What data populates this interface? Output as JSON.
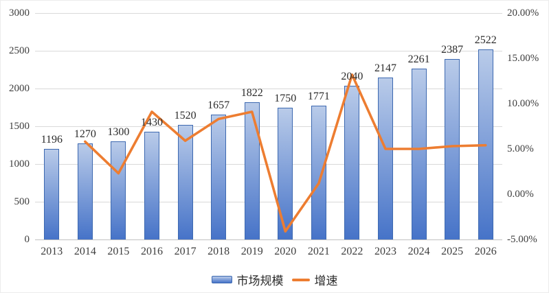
{
  "chart_data": {
    "type": "combo_bar_line",
    "categories": [
      "2013",
      "2014",
      "2015",
      "2016",
      "2017",
      "2018",
      "2019",
      "2020",
      "2021",
      "2022",
      "2023",
      "2024",
      "2025",
      "2026"
    ],
    "series": [
      {
        "name": "市场规模",
        "type": "bar",
        "axis": "left",
        "values": [
          1196,
          1270,
          1300,
          1430,
          1520,
          1657,
          1822,
          1750,
          1771,
          2040,
          2147,
          2261,
          2387,
          2522
        ],
        "value_labels_shown": true
      },
      {
        "name": "增速",
        "type": "line",
        "axis": "right",
        "unit": "%",
        "values": [
          null,
          5.8,
          2.3,
          9.1,
          5.9,
          8.3,
          9.1,
          -4.1,
          1.2,
          13.2,
          5.0,
          5.0,
          5.3,
          5.4
        ]
      }
    ],
    "left_axis": {
      "min": 0,
      "max": 3000,
      "step": 500,
      "tick_labels_top_to_bottom": [
        "3000",
        "2500",
        "2000",
        "1500",
        "1000",
        "500",
        "0"
      ]
    },
    "right_axis": {
      "min": -5,
      "max": 20,
      "step": 5,
      "tick_labels_top_to_bottom": [
        "20.00%",
        "15.00%",
        "10.00%",
        "5.00%",
        "0.00%",
        "-5.00%"
      ]
    },
    "grid": "horizontal",
    "legend_position": "bottom",
    "title": ""
  },
  "legend": {
    "bar_label": "市场规模",
    "line_label": "增速"
  },
  "colors": {
    "bar_gradient_top": "#b9cbe9",
    "bar_gradient_bottom": "#4673c8",
    "bar_border": "#3c68b0",
    "line": "#ed7d31",
    "gridline": "#d9d9d9",
    "axis_line": "#c0c0c0",
    "tick_text": "#3d3d3d",
    "label_text": "#2b2b2b",
    "background": "#ffffff"
  }
}
